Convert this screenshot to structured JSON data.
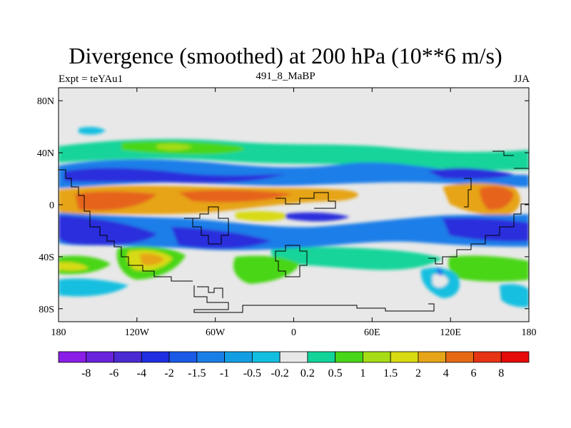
{
  "chart_data": {
    "type": "heatmap",
    "title": "Divergence (smoothed) at 200 hPa (10**6 m/s)",
    "subtitle_left": "Expt = teYAu1",
    "subtitle_center": "491_8_MaBP",
    "subtitle_right": "JJA",
    "x_ticks": [
      "180",
      "120W",
      "60W",
      "0",
      "60E",
      "120E",
      "180"
    ],
    "x_tick_values": [
      -180,
      -120,
      -60,
      0,
      60,
      120,
      180
    ],
    "y_ticks": [
      "80N",
      "40N",
      "0",
      "40S",
      "80S"
    ],
    "y_tick_values": [
      80,
      40,
      0,
      -40,
      -80
    ],
    "xlim": [
      -180,
      180
    ],
    "ylim": [
      -90,
      90
    ],
    "colorbar_labels": [
      "-8",
      "-6",
      "-4",
      "-2",
      "-1.5",
      "-1",
      "-0.5",
      "-0.2",
      "0.2",
      "0.5",
      "1",
      "1.5",
      "2",
      "4",
      "6",
      "8"
    ],
    "colorbar_colors": [
      "#8a1ee6",
      "#6a22dc",
      "#4a2ad2",
      "#1e2ee0",
      "#1a5ae6",
      "#1a7ee8",
      "#139ee4",
      "#13bfe0",
      "#e8e8e8",
      "#12d49a",
      "#48d618",
      "#a6dc16",
      "#d8da12",
      "#e6a418",
      "#e66a14",
      "#e63414",
      "#e60a0a"
    ],
    "fields": [
      {
        "level": "-4",
        "color": "#2c2edc",
        "regions": [
          {
            "lon": -160,
            "lat": -20,
            "rx": 30,
            "ry": 18
          },
          {
            "lon": -60,
            "lat": -30,
            "rx": 35,
            "ry": 12
          },
          {
            "lon": 50,
            "lat": -5,
            "rx": 40,
            "ry": 8
          },
          {
            "lon": -100,
            "lat": 22,
            "rx": 50,
            "ry": 8
          },
          {
            "lon": 130,
            "lat": 30,
            "rx": 25,
            "ry": 8
          },
          {
            "lon": 160,
            "lat": -25,
            "rx": 28,
            "ry": 10
          }
        ]
      },
      {
        "level": "4",
        "color": "#e6641a",
        "regions": [
          {
            "lon": -140,
            "lat": 3,
            "rx": 35,
            "ry": 8
          },
          {
            "lon": -40,
            "lat": 6,
            "rx": 40,
            "ry": 6
          },
          {
            "lon": 155,
            "lat": 8,
            "rx": 18,
            "ry": 8
          },
          {
            "lon": -100,
            "lat": -45,
            "rx": 15,
            "ry": 6
          }
        ]
      }
    ]
  }
}
